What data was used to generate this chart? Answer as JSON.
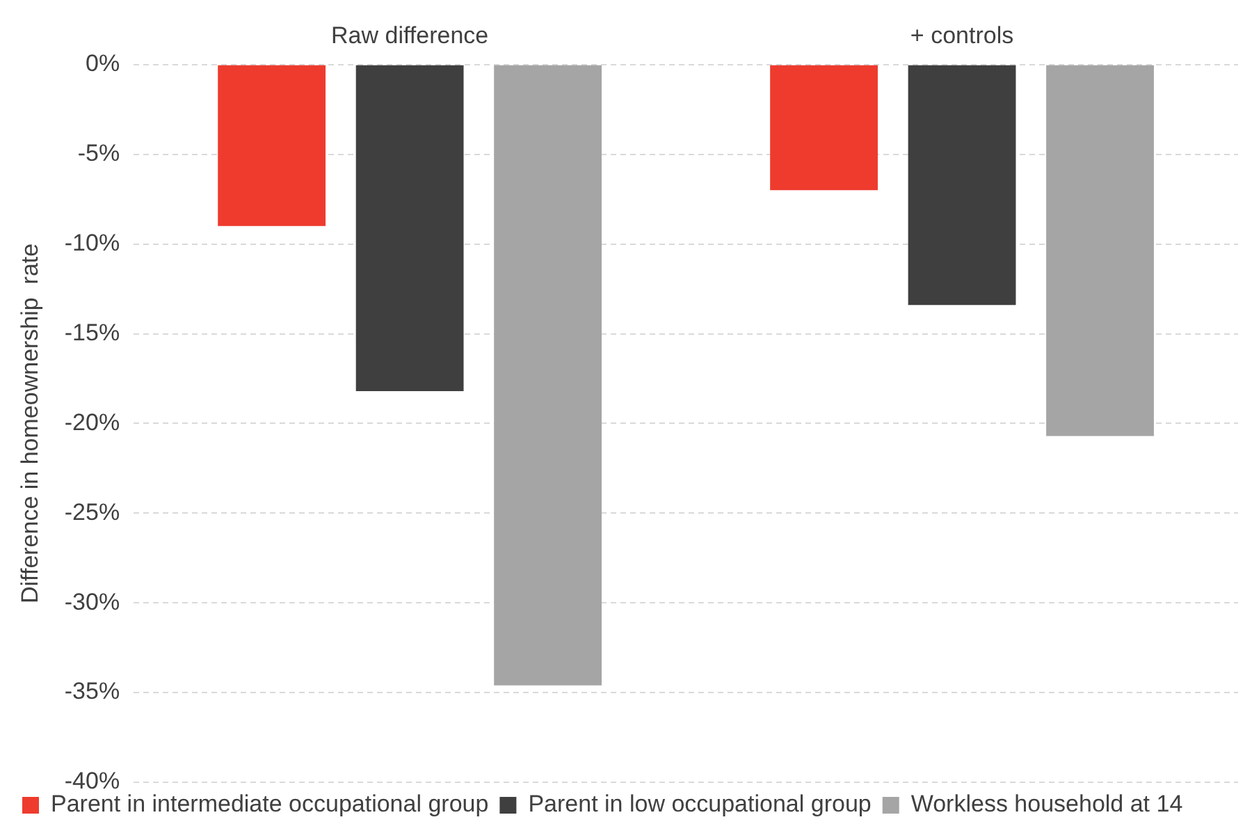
{
  "chart_data": {
    "type": "bar",
    "ylabel": "Difference in homeownership  rate",
    "categories": [
      "Raw difference",
      "+ controls"
    ],
    "series": [
      {
        "name": "Parent in intermediate occupational group",
        "color": "#ee3b2e",
        "values": [
          -9.0,
          -7.0
        ]
      },
      {
        "name": "Parent in low occupational group",
        "color": "#3f3f3f",
        "values": [
          -18.2,
          -13.4
        ]
      },
      {
        "name": "Workless household at 14",
        "color": "#a5a5a5",
        "values": [
          -34.6,
          -20.7
        ]
      }
    ],
    "ylim": [
      -40,
      0
    ],
    "yticks": [
      {
        "value": 0,
        "label": "0%"
      },
      {
        "value": -5,
        "label": "-5%"
      },
      {
        "value": -10,
        "label": "-10%"
      },
      {
        "value": -15,
        "label": "-15%"
      },
      {
        "value": -20,
        "label": "-20%"
      },
      {
        "value": -25,
        "label": "-25%"
      },
      {
        "value": -30,
        "label": "-30%"
      },
      {
        "value": -35,
        "label": "-35%"
      },
      {
        "value": -40,
        "label": "-40%"
      }
    ],
    "grid": "y",
    "legend": "bottom"
  }
}
